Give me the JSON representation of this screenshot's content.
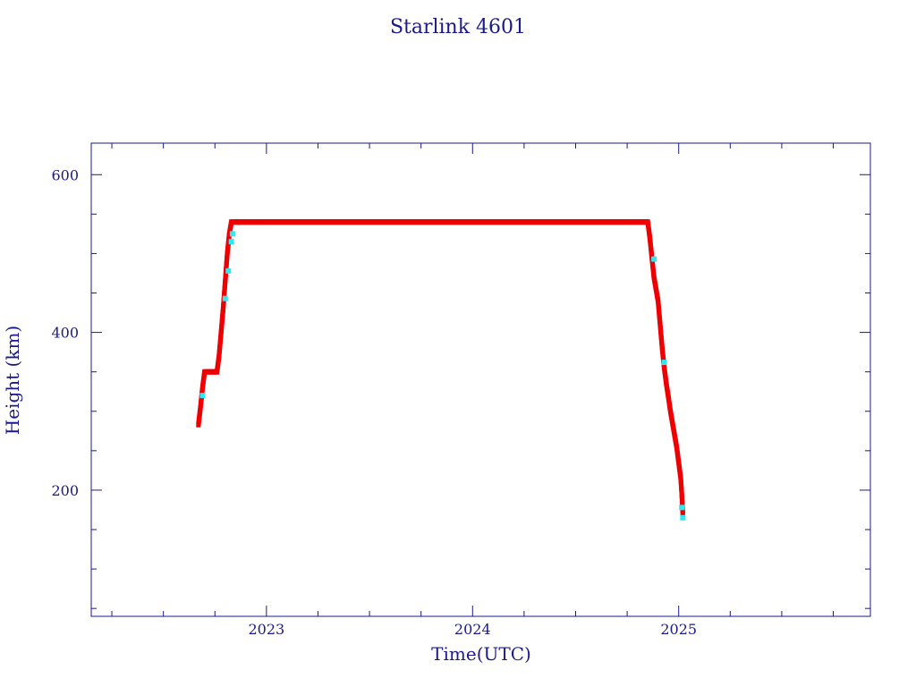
{
  "chart_data": {
    "type": "scatter",
    "title": "Starlink 4601",
    "xlabel": "Time(UTC)",
    "ylabel": "Height (km)",
    "xlim": [
      2022.15,
      2025.93
    ],
    "ylim": [
      40,
      640
    ],
    "x_ticks": [
      2023,
      2024,
      2025
    ],
    "x_tick_labels": [
      "2023",
      "2024",
      "2025"
    ],
    "y_ticks": [
      200,
      400,
      600
    ],
    "y_tick_labels": [
      "200",
      "400",
      "600"
    ],
    "x_minor_step": 0.25,
    "y_minor_step": 50,
    "grid": false,
    "colors": {
      "axis": "#1a1a8c",
      "line": "#1a1a8c",
      "primary": "#ee0000",
      "secondary": "#33e6f2"
    },
    "series": [
      {
        "color": "#ee0000",
        "x": [
          2022.67,
          2022.68,
          2022.69,
          2022.7,
          2022.71,
          2022.72,
          2022.74,
          2022.76,
          2022.77,
          2022.78,
          2022.79,
          2022.8,
          2022.81,
          2022.82,
          2022.83,
          2022.84,
          2022.85,
          2023.0,
          2023.25,
          2023.5,
          2023.75,
          2024.0,
          2024.25,
          2024.5,
          2024.75,
          2024.85,
          2024.86,
          2024.87,
          2024.88,
          2024.9,
          2024.91,
          2024.92,
          2024.93,
          2024.94,
          2024.95,
          2024.96,
          2024.97,
          2024.98,
          2024.99,
          2025.0,
          2025.01,
          2025.015,
          2025.02
        ],
        "y": [
          283,
          305,
          330,
          350,
          350,
          350,
          350,
          350,
          370,
          400,
          430,
          465,
          500,
          525,
          540,
          540,
          540,
          540,
          540,
          540,
          540,
          540,
          540,
          540,
          540,
          540,
          520,
          495,
          470,
          440,
          410,
          380,
          355,
          335,
          318,
          300,
          285,
          270,
          255,
          235,
          215,
          195,
          170
        ]
      },
      {
        "color": "#33e6f2",
        "x": [
          2022.69,
          2022.8,
          2022.815,
          2022.83,
          2022.835,
          2024.88,
          2024.93,
          2025.015,
          2025.02
        ],
        "y": [
          320,
          443,
          478,
          515,
          525,
          493,
          362,
          178,
          165
        ]
      }
    ]
  }
}
